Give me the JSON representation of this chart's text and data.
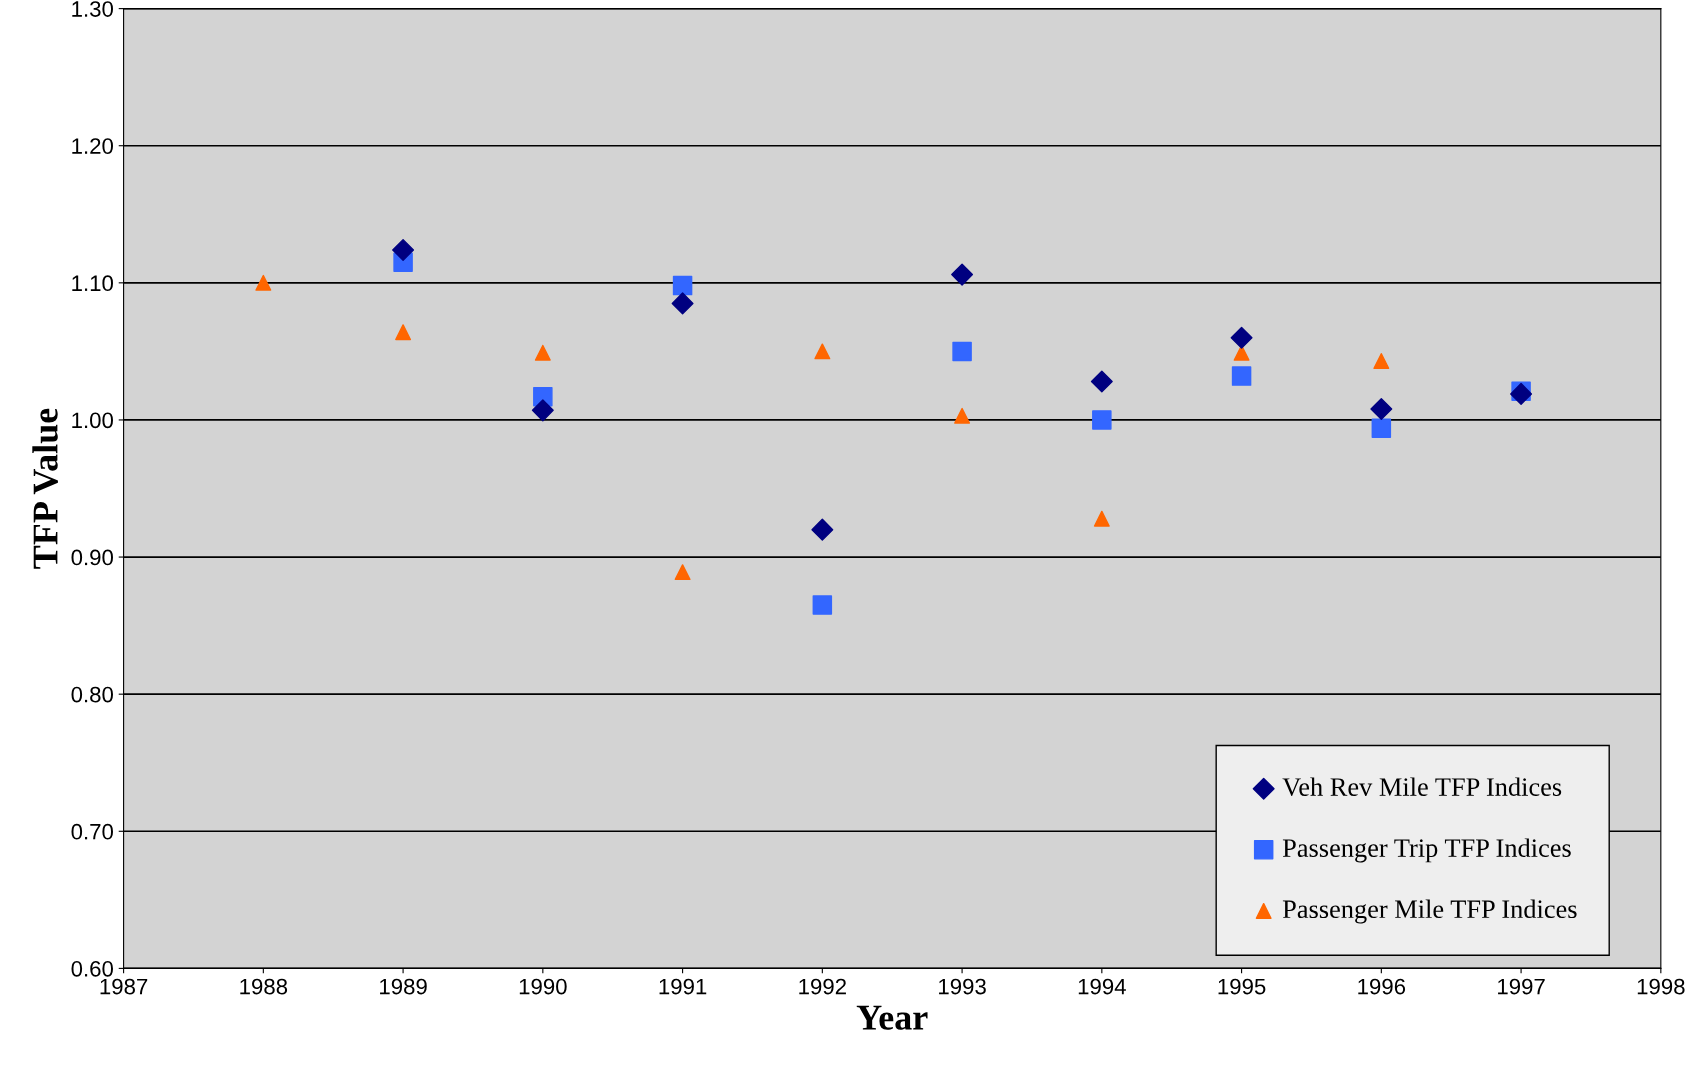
{
  "chart_data": {
    "type": "scatter",
    "xlabel": "Year",
    "ylabel": "TFP Value",
    "xlim": [
      1987,
      1998
    ],
    "xticks": [
      1987,
      1988,
      1989,
      1990,
      1991,
      1992,
      1993,
      1994,
      1995,
      1996,
      1997,
      1998
    ],
    "ylim": [
      0.6,
      1.3
    ],
    "yticks": [
      {
        "value": 0.6,
        "label": "0.60"
      },
      {
        "value": 0.7,
        "label": "0.70"
      },
      {
        "value": 0.8,
        "label": "0.80"
      },
      {
        "value": 0.9,
        "label": "0.90"
      },
      {
        "value": 1.0,
        "label": "1.00"
      },
      {
        "value": 1.1,
        "label": "1.10"
      },
      {
        "value": 1.2,
        "label": "1.20"
      },
      {
        "value": 1.3,
        "label": "1.30"
      }
    ],
    "grid": "y",
    "legend": "bottom right",
    "series": [
      {
        "name": "Veh Rev Mile TFP Indices",
        "color": "#000080",
        "marker": "diamond",
        "x": [
          1989,
          1990,
          1991,
          1992,
          1993,
          1994,
          1995,
          1996,
          1997
        ],
        "values": [
          1.124,
          1.007,
          1.085,
          0.92,
          1.106,
          1.028,
          1.06,
          1.008,
          1.019
        ]
      },
      {
        "name": "Passenger Trip TFP Indices",
        "color": "#3366ff",
        "marker": "square",
        "x": [
          1989,
          1990,
          1991,
          1992,
          1993,
          1994,
          1995,
          1996,
          1997
        ],
        "values": [
          1.115,
          1.017,
          1.098,
          0.865,
          1.05,
          1.0,
          1.032,
          0.994,
          1.021
        ]
      },
      {
        "name": "Passenger Mile TFP Indices",
        "color": "#ff6600",
        "marker": "triangle",
        "x": [
          1988,
          1989,
          1990,
          1991,
          1992,
          1993,
          1994,
          1995,
          1996
        ],
        "values": [
          1.1,
          1.064,
          1.049,
          0.889,
          1.05,
          1.003,
          0.928,
          1.049,
          1.043
        ]
      }
    ]
  }
}
